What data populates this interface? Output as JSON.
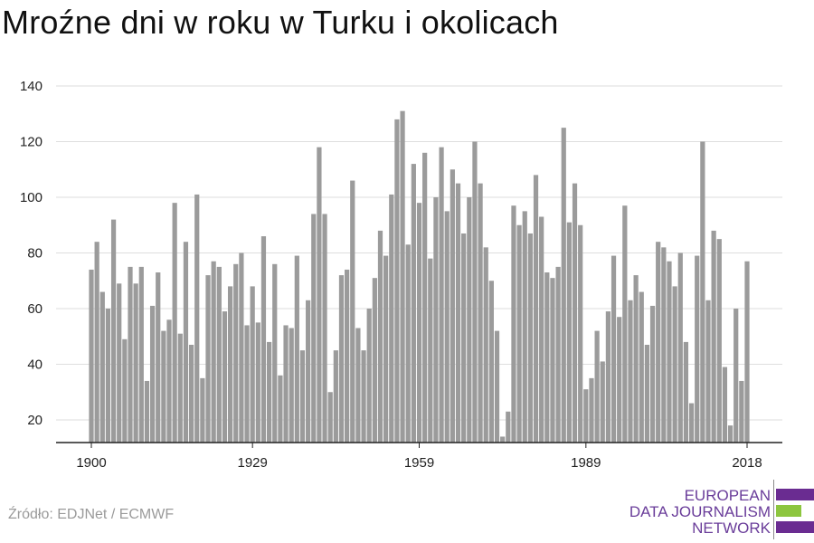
{
  "title": "Mroźne dni w roku w Turku i okolicach",
  "source": "Źródło: EDJNet / ECMWF",
  "logo": {
    "lines": [
      "EUROPEAN",
      "DATA JOURNALISM",
      "NETWORK"
    ],
    "colors": {
      "purple": "#6a2c91",
      "green": "#8dc63f"
    }
  },
  "colors": {
    "bar": "#9b9b9b",
    "grid": "#dedede",
    "axis": "#222222",
    "text": "#222222"
  },
  "chart_data": {
    "type": "bar",
    "x_start": 1900,
    "x_end": 2018,
    "x_tick_labels": [
      "1900",
      "1929",
      "1959",
      "1989",
      "2018"
    ],
    "ylim": [
      12,
      145
    ],
    "y_ticks": [
      20,
      40,
      60,
      80,
      100,
      120,
      140
    ],
    "grid": true,
    "title": "Mroźne dni w roku w Turku i okolicach",
    "xlabel": "",
    "ylabel": "",
    "series": [
      {
        "color": "#9b9b9b",
        "values": [
          74,
          84,
          66,
          60,
          92,
          69,
          49,
          75,
          69,
          75,
          34,
          61,
          73,
          52,
          56,
          98,
          51,
          84,
          47,
          101,
          35,
          72,
          77,
          75,
          59,
          68,
          76,
          80,
          54,
          68,
          55,
          86,
          48,
          76,
          36,
          54,
          53,
          79,
          45,
          63,
          94,
          118,
          94,
          30,
          45,
          72,
          74,
          106,
          53,
          45,
          60,
          71,
          88,
          79,
          101,
          128,
          131,
          83,
          112,
          98,
          116,
          78,
          100,
          118,
          95,
          110,
          105,
          87,
          100,
          120,
          105,
          82,
          70,
          52,
          14,
          23,
          97,
          90,
          95,
          87,
          108,
          93,
          73,
          71,
          75,
          125,
          91,
          105,
          90,
          31,
          35,
          52,
          41,
          59,
          79,
          57,
          97,
          63,
          72,
          66,
          47,
          61,
          84,
          82,
          77,
          68,
          80,
          48,
          26,
          79,
          120,
          63,
          88,
          85,
          39,
          18,
          60,
          34,
          77
        ]
      }
    ]
  }
}
